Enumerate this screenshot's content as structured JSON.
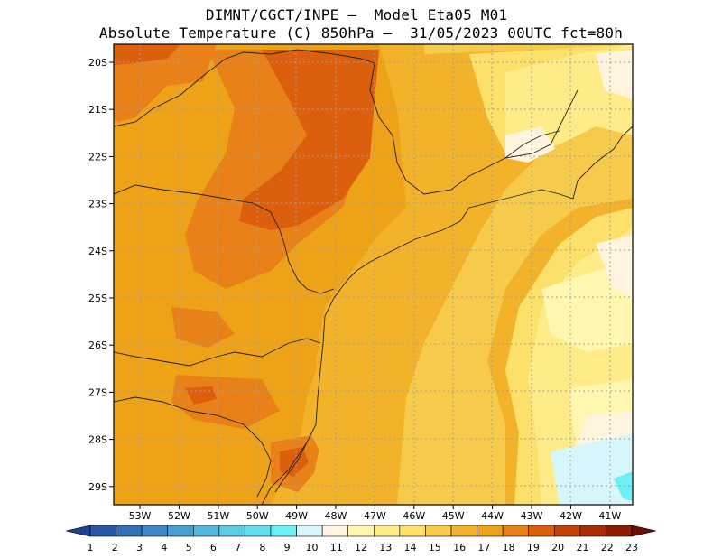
{
  "header": {
    "line1": "DIMNT/CGCT/INPE –  Model Eta05_M01_",
    "line2": "Absolute Temperature (C) 850hPa –  31/05/2023 00UTC fct=80h"
  },
  "map": {
    "lat_labels": [
      "20S",
      "21S",
      "22S",
      "23S",
      "24S",
      "25S",
      "26S",
      "27S",
      "28S",
      "29S"
    ],
    "lon_labels": [
      "53W",
      "52W",
      "51W",
      "50W",
      "49W",
      "48W",
      "47W",
      "46W",
      "45W",
      "44W",
      "43W",
      "42W",
      "41W"
    ],
    "extent": {
      "lon": [
        -53.6,
        -40.3
      ],
      "lat": [
        -29.4,
        -19.8
      ]
    },
    "grid": true
  },
  "colorbar": {
    "labels": [
      "1",
      "2",
      "3",
      "4",
      "5",
      "6",
      "7",
      "8",
      "9",
      "10",
      "11",
      "12",
      "13",
      "14",
      "15",
      "16",
      "17",
      "18",
      "19",
      "20",
      "21",
      "22",
      "23"
    ],
    "colors": [
      "#1f3f8f",
      "#2a56a6",
      "#3570b6",
      "#3f86c4",
      "#4a9fd0",
      "#55b6dc",
      "#5ccbe6",
      "#62dcee",
      "#6cf0f5",
      "#d6f6fb",
      "#fff4de",
      "#fff6b0",
      "#ffec88",
      "#fde06a",
      "#f6cb4c",
      "#f2b22a",
      "#eda218",
      "#e88218",
      "#db5f0c",
      "#c44408",
      "#a92c05",
      "#8e1c04",
      "#6c0d06"
    ]
  }
}
